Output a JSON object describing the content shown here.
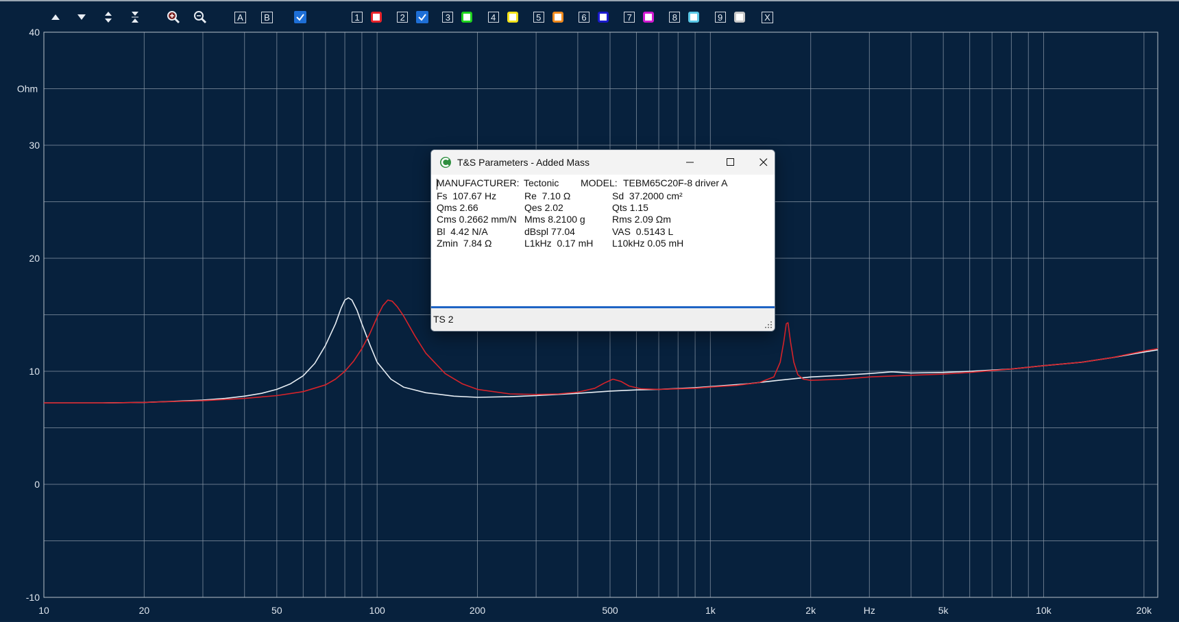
{
  "toolbar": {
    "icons": [
      "arrow-up-icon",
      "arrow-down-icon",
      "expand-vertical-icon",
      "compress-vertical-icon",
      "zoom-in-icon",
      "zoom-out-icon"
    ],
    "letter_a": "A",
    "letter_b": "B",
    "curves": [
      {
        "num": "1",
        "color": "#e8232a",
        "checked": false
      },
      {
        "num": "2",
        "color": "#1e6fd6",
        "checked": true
      },
      {
        "num": "3",
        "color": "#1fd41f",
        "checked": false
      },
      {
        "num": "4",
        "color": "#f2e21a",
        "checked": false
      },
      {
        "num": "5",
        "color": "#f08a1e",
        "checked": false
      },
      {
        "num": "6",
        "color": "#1a1acc",
        "checked": false
      },
      {
        "num": "7",
        "color": "#d21ad2",
        "checked": false
      },
      {
        "num": "8",
        "color": "#5ac8e6",
        "checked": false
      },
      {
        "num": "9",
        "color": "#c8c8c8",
        "checked": false
      }
    ],
    "close_label": "X"
  },
  "dialog": {
    "title": "T&S Parameters - Added Mass",
    "manufacturer_label": "MANUFACTURER:",
    "manufacturer": "Tectonic",
    "model_label": "MODEL:",
    "model": "TEBM65C20F-8 driver A",
    "params": [
      [
        "Fs  107.67 Hz",
        "Re  7.10 Ω",
        "Sd  37.2000 cm²"
      ],
      [
        "Qms 2.66",
        "Qes 2.02",
        "Qts 1.15"
      ],
      [
        "Cms 0.2662 mm/N",
        "Mms 8.2100 g",
        "Rms 2.09 Ωm"
      ],
      [
        "Bl  4.42 N/A",
        "dBspl 77.04",
        "VAS  0.5143 L"
      ],
      [
        "Zmin  7.84 Ω",
        "L1kHz  0.17 mH",
        "L10kHz 0.05 mH"
      ]
    ],
    "status": "TS 2"
  },
  "chart_data": {
    "type": "line",
    "ylabel": "Ohm",
    "xlabel": "Hz",
    "xscale": "log",
    "xlim": [
      10,
      22000
    ],
    "ylim": [
      -10,
      40
    ],
    "grid": true,
    "xticks": [
      "10",
      "20",
      "50",
      "100",
      "200",
      "500",
      "1k",
      "2k",
      "5k",
      "10k",
      "20k"
    ],
    "xtick_values": [
      10,
      20,
      50,
      100,
      200,
      500,
      1000,
      2000,
      5000,
      10000,
      20000
    ],
    "yticks": [
      -10,
      0,
      10,
      20,
      30,
      40
    ],
    "series": [
      {
        "color": "#e8eef4",
        "points": [
          [
            10,
            7.2
          ],
          [
            15,
            7.2
          ],
          [
            20,
            7.25
          ],
          [
            25,
            7.35
          ],
          [
            30,
            7.45
          ],
          [
            35,
            7.6
          ],
          [
            40,
            7.8
          ],
          [
            45,
            8.05
          ],
          [
            50,
            8.4
          ],
          [
            55,
            8.9
          ],
          [
            60,
            9.6
          ],
          [
            65,
            10.7
          ],
          [
            70,
            12.3
          ],
          [
            75,
            14.2
          ],
          [
            78,
            15.6
          ],
          [
            80,
            16.3
          ],
          [
            82,
            16.5
          ],
          [
            84,
            16.3
          ],
          [
            87,
            15.4
          ],
          [
            90,
            14.2
          ],
          [
            95,
            12.4
          ],
          [
            100,
            10.8
          ],
          [
            110,
            9.3
          ],
          [
            120,
            8.6
          ],
          [
            140,
            8.1
          ],
          [
            170,
            7.8
          ],
          [
            200,
            7.7
          ],
          [
            250,
            7.75
          ],
          [
            300,
            7.85
          ],
          [
            400,
            8.05
          ],
          [
            500,
            8.25
          ],
          [
            600,
            8.35
          ],
          [
            700,
            8.4
          ],
          [
            900,
            8.55
          ],
          [
            1000,
            8.65
          ],
          [
            1300,
            8.9
          ],
          [
            1600,
            9.2
          ],
          [
            2000,
            9.5
          ],
          [
            2500,
            9.65
          ],
          [
            3000,
            9.8
          ],
          [
            3500,
            9.95
          ],
          [
            4000,
            9.85
          ],
          [
            5000,
            9.9
          ],
          [
            6000,
            10.0
          ],
          [
            8000,
            10.2
          ],
          [
            10000,
            10.5
          ],
          [
            13000,
            10.8
          ],
          [
            16000,
            11.2
          ],
          [
            20000,
            11.7
          ],
          [
            22000,
            11.9
          ]
        ]
      },
      {
        "color": "#d8232a",
        "points": [
          [
            10,
            7.2
          ],
          [
            15,
            7.2
          ],
          [
            20,
            7.25
          ],
          [
            30,
            7.4
          ],
          [
            40,
            7.6
          ],
          [
            50,
            7.85
          ],
          [
            60,
            8.2
          ],
          [
            70,
            8.8
          ],
          [
            75,
            9.3
          ],
          [
            80,
            10.0
          ],
          [
            85,
            10.9
          ],
          [
            90,
            12.0
          ],
          [
            95,
            13.3
          ],
          [
            100,
            14.8
          ],
          [
            104,
            15.8
          ],
          [
            107.7,
            16.3
          ],
          [
            111,
            16.2
          ],
          [
            115,
            15.7
          ],
          [
            120,
            14.9
          ],
          [
            130,
            13.1
          ],
          [
            140,
            11.6
          ],
          [
            160,
            9.8
          ],
          [
            180,
            8.9
          ],
          [
            200,
            8.4
          ],
          [
            250,
            8.0
          ],
          [
            300,
            7.95
          ],
          [
            350,
            8.0
          ],
          [
            400,
            8.15
          ],
          [
            450,
            8.5
          ],
          [
            480,
            8.95
          ],
          [
            510,
            9.3
          ],
          [
            540,
            9.1
          ],
          [
            570,
            8.7
          ],
          [
            620,
            8.45
          ],
          [
            700,
            8.4
          ],
          [
            900,
            8.5
          ],
          [
            1000,
            8.6
          ],
          [
            1200,
            8.75
          ],
          [
            1400,
            9.0
          ],
          [
            1550,
            9.5
          ],
          [
            1620,
            10.8
          ],
          [
            1660,
            12.6
          ],
          [
            1690,
            14.2
          ],
          [
            1710,
            14.3
          ],
          [
            1740,
            12.6
          ],
          [
            1780,
            10.8
          ],
          [
            1830,
            9.7
          ],
          [
            1900,
            9.3
          ],
          [
            2000,
            9.2
          ],
          [
            2500,
            9.3
          ],
          [
            3000,
            9.5
          ],
          [
            4000,
            9.65
          ],
          [
            5000,
            9.75
          ],
          [
            6000,
            9.9
          ],
          [
            8000,
            10.2
          ],
          [
            10000,
            10.5
          ],
          [
            13000,
            10.8
          ],
          [
            16000,
            11.2
          ],
          [
            20000,
            11.8
          ],
          [
            22000,
            12.0
          ]
        ]
      }
    ]
  }
}
